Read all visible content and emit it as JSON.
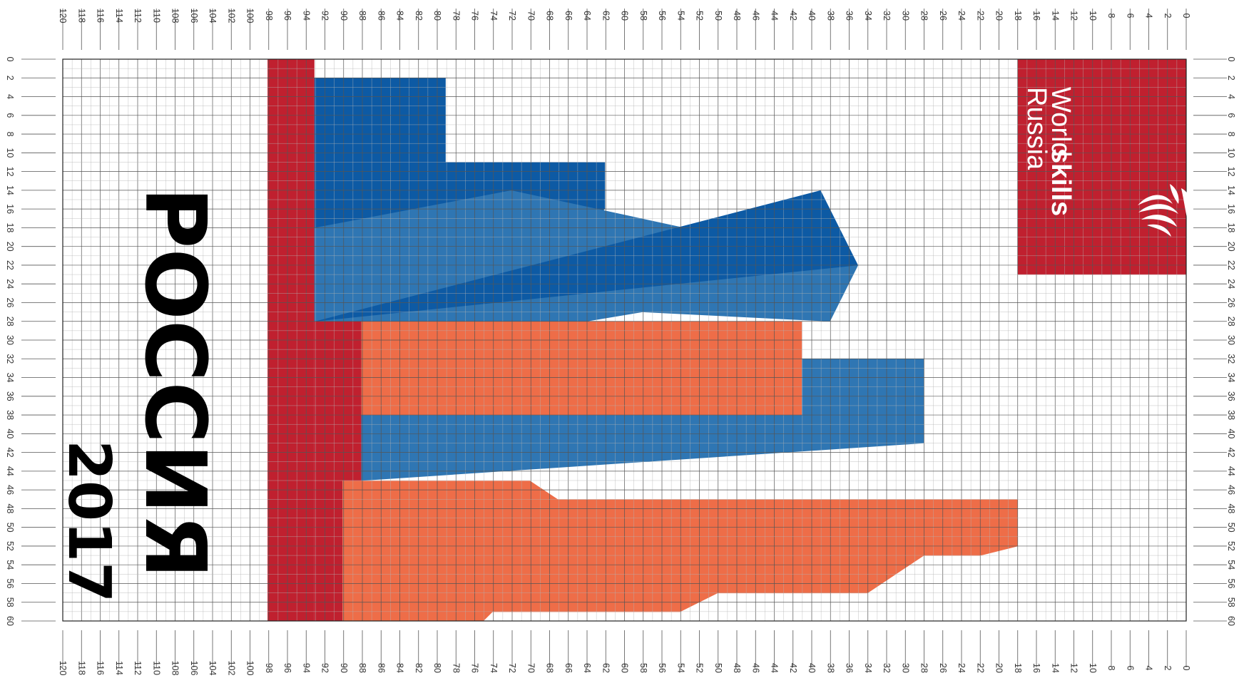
{
  "colors": {
    "red": "#c0202f",
    "blue_dark": "#0d5aa4",
    "blue_mid": "#2f76b3",
    "orange": "#ee6d48",
    "grid_minor": "#b4b4b4",
    "grid_major": "#555555",
    "white": "#ffffff",
    "text": "#000000"
  },
  "grid": {
    "x_max": 120,
    "y_max": 60,
    "x_axis_direction": "right-to-left",
    "label_step": 2,
    "minor_step": 1
  },
  "title": "РОССИЯ",
  "year": "2017",
  "logo": {
    "line1_light": "World",
    "line1_bold": "skills",
    "line2": "Russia",
    "emblem_icon": "worldskills-flame-icon"
  }
}
